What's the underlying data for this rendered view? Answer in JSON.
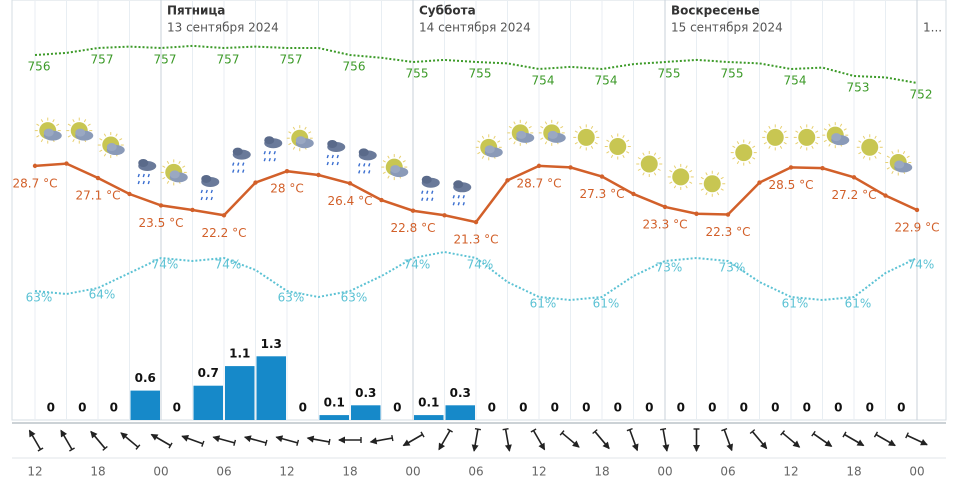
{
  "days": [
    {
      "name": "Пятница",
      "date": "13 сентября 2024"
    },
    {
      "name": "Суббота",
      "date": "14 сентября 2024"
    },
    {
      "name": "Воскресенье",
      "date": "15 сентября 2024"
    },
    {
      "date": "1..."
    }
  ],
  "chart_data": [
    {
      "type": "line",
      "name": "temperature",
      "categories": [
        "12",
        null,
        "18",
        null,
        "00",
        null,
        "06",
        null,
        "12",
        null,
        "18",
        null,
        "00",
        null,
        "06",
        null,
        "12",
        null,
        "18",
        null,
        "00",
        null,
        "06",
        null,
        "12",
        null,
        "18",
        null,
        "00"
      ],
      "values": [
        28.7,
        29.0,
        27.1,
        25.0,
        23.5,
        22.9,
        22.2,
        26.5,
        28,
        27.5,
        26.4,
        24.2,
        22.8,
        22.2,
        21.3,
        26.8,
        28.7,
        28.5,
        27.3,
        25.0,
        23.3,
        22.4,
        22.3,
        26.5,
        28.5,
        28.4,
        27.2,
        24.8,
        22.9
      ],
      "value_labels": [
        "28.7 °C",
        null,
        "27.1 °C",
        null,
        "23.5 °C",
        null,
        "22.2 °C",
        null,
        "28 °C",
        null,
        "26.4 °C",
        null,
        "22.8 °C",
        null,
        "21.3 °C",
        null,
        "28.7 °C",
        null,
        "27.3 °C",
        null,
        "23.3 °C",
        null,
        "22.3 °C",
        null,
        "28.5 °C",
        null,
        "27.2 °C",
        null,
        "22.9 °C"
      ],
      "color": "#d2602a",
      "ylim": [
        20,
        30
      ]
    },
    {
      "type": "line",
      "name": "pressure",
      "dotted": true,
      "values": [
        756,
        756.3,
        757,
        757.2,
        757,
        757.3,
        757,
        757.2,
        757,
        757.0,
        756,
        755.6,
        755,
        755.3,
        755,
        754.8,
        754,
        754.3,
        754,
        754.7,
        755,
        755.3,
        755,
        754.8,
        754,
        754.2,
        753,
        752.8,
        752
      ],
      "value_labels": [
        "756",
        null,
        "757",
        null,
        "757",
        null,
        "757",
        null,
        "757",
        null,
        "756",
        null,
        "755",
        null,
        "755",
        null,
        "754",
        null,
        "754",
        null,
        "755",
        null,
        "755",
        null,
        "754",
        null,
        "753",
        null,
        "752"
      ],
      "color": "#3c9a28",
      "ylim": [
        750,
        760
      ]
    },
    {
      "type": "line",
      "name": "humidity",
      "dotted": true,
      "values": [
        63,
        62,
        64,
        69,
        74,
        73,
        74,
        70,
        63,
        61,
        63,
        68,
        74,
        76,
        74,
        66,
        61,
        60,
        61,
        68,
        73,
        74,
        73,
        66,
        61,
        60,
        61,
        69,
        74
      ],
      "value_labels": [
        "63%",
        null,
        "64%",
        null,
        "74%",
        null,
        "74%",
        null,
        "63%",
        null,
        "63%",
        null,
        "74%",
        null,
        "74%",
        null,
        "61%",
        null,
        "61%",
        null,
        "73%",
        null,
        "73%",
        null,
        "61%",
        null,
        "61%",
        null,
        "74%"
      ],
      "color": "#5cc2d4",
      "ylim": [
        50,
        80
      ]
    },
    {
      "type": "bar",
      "name": "precipitation",
      "values": [
        0,
        0,
        0,
        0.6,
        0,
        0.7,
        1.1,
        1.3,
        0,
        0.1,
        0.3,
        0,
        0.1,
        0.3,
        0,
        0,
        0,
        0,
        0,
        0,
        0,
        0,
        0,
        0,
        0,
        0,
        0,
        0
      ],
      "color": "#1689c9",
      "ylim": [
        0,
        1.5
      ]
    },
    {
      "type": "wind",
      "values": [
        330,
        330,
        320,
        310,
        300,
        290,
        285,
        285,
        285,
        280,
        270,
        260,
        240,
        210,
        190,
        170,
        150,
        130,
        140,
        160,
        170,
        180,
        160,
        140,
        130,
        125,
        120,
        120,
        115
      ],
      "color": "#222222"
    }
  ]
}
